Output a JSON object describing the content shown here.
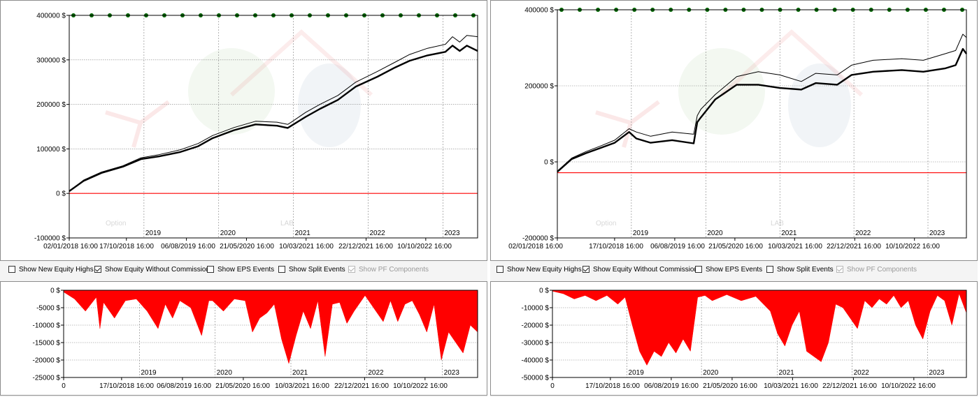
{
  "toolbar": {
    "show_new_equity_highs": {
      "label": "Show New Equity Highs",
      "checked": false,
      "enabled": true
    },
    "show_equity_without_commissions": {
      "label": "Show Equity Without Commissions",
      "checked": true,
      "enabled": true
    },
    "show_eps_events": {
      "label": "Show EPS Events",
      "checked": false,
      "enabled": true
    },
    "show_split_events": {
      "label": "Show Split Events",
      "checked": false,
      "enabled": true
    },
    "show_pf_components": {
      "label": "Show PF Components",
      "checked": true,
      "enabled": false
    }
  },
  "watermark": {
    "text_part1": "Option",
    "text_part2": "LAB"
  },
  "colors": {
    "equity": "#000000",
    "zero_line": "#ff0000",
    "drawdown": "#ff0000",
    "marker": "#006400",
    "grid": "#808080"
  },
  "chart_data": [
    {
      "id": "left-equity",
      "type": "line",
      "title": "",
      "xlabel": "",
      "ylabel": "",
      "x_tick_labels": [
        "02/01/2018 16:00",
        "17/10/2018 16:00",
        "06/08/2019 16:00",
        "21/05/2020 16:00",
        "10/03/2021 16:00",
        "22/12/2021 16:00",
        "10/10/2022 16:00"
      ],
      "year_labels": [
        "2019",
        "2020",
        "2021",
        "2022",
        "2023"
      ],
      "y_tick_labels": [
        "400000 $",
        "300000 $",
        "200000 $",
        "100000 $",
        "0 $",
        "-100000 $"
      ],
      "ylim": [
        -100000,
        400000
      ],
      "xlim": [
        0,
        5.7
      ],
      "grid": true,
      "markers": {
        "y": 400000,
        "count": 23
      },
      "series": [
        {
          "role": "equity-without-commissions",
          "x": [
            0,
            0.2,
            0.45,
            0.75,
            1.0,
            1.25,
            1.55,
            1.8,
            2.0,
            2.3,
            2.6,
            2.9,
            3.05,
            3.1,
            3.3,
            3.5,
            3.75,
            4.0,
            4.3,
            4.55,
            4.75,
            5.0,
            5.25,
            5.35,
            5.45,
            5.55,
            5.7
          ],
          "y": [
            5000,
            30000,
            48000,
            62000,
            80000,
            87000,
            98000,
            112000,
            130000,
            148000,
            162000,
            160000,
            155000,
            160000,
            182000,
            200000,
            220000,
            250000,
            274000,
            295000,
            312000,
            326000,
            335000,
            352000,
            340000,
            355000,
            352000
          ]
        },
        {
          "role": "equity",
          "x": [
            0,
            0.2,
            0.45,
            0.75,
            1.0,
            1.25,
            1.55,
            1.8,
            2.0,
            2.3,
            2.6,
            2.9,
            3.05,
            3.1,
            3.3,
            3.5,
            3.75,
            4.0,
            4.3,
            4.55,
            4.75,
            5.0,
            5.25,
            5.35,
            5.45,
            5.55,
            5.7
          ],
          "y": [
            5000,
            28000,
            46000,
            60000,
            77000,
            83000,
            93000,
            106000,
            124000,
            142000,
            155000,
            152000,
            147000,
            152000,
            172000,
            190000,
            210000,
            240000,
            262000,
            283000,
            298000,
            310000,
            318000,
            332000,
            320000,
            332000,
            320000
          ]
        }
      ]
    },
    {
      "id": "right-equity",
      "type": "line",
      "title": "",
      "xlabel": "",
      "ylabel": "",
      "x_tick_labels": [
        "02/01/2018 16:00",
        "17/10/2018 16:00",
        "06/08/2019 16:00",
        "21/05/2020 16:00",
        "10/03/2021 16:00",
        "22/12/2021 16:00",
        "10/10/2022 16:00"
      ],
      "year_labels": [
        "2019",
        "2020",
        "2021",
        "2022",
        "2023"
      ],
      "y_tick_labels": [
        "400000 $",
        "200000 $",
        "0 $",
        "-200000 $"
      ],
      "ylim": [
        -200000,
        500000
      ],
      "xlim": [
        0,
        5.7
      ],
      "grid": true,
      "markers": {
        "y": 500000,
        "count": 23
      },
      "series": [
        {
          "role": "equity-without-commissions",
          "x": [
            0,
            0.2,
            0.4,
            0.6,
            0.8,
            1.0,
            1.1,
            1.3,
            1.6,
            1.9,
            1.95,
            2.0,
            2.2,
            2.5,
            2.8,
            3.1,
            3.4,
            3.6,
            3.9,
            4.1,
            4.4,
            4.8,
            5.1,
            5.4,
            5.55,
            5.65,
            5.7
          ],
          "y": [
            5000,
            45000,
            65000,
            82000,
            100000,
            135000,
            125000,
            112000,
            125000,
            118000,
            175000,
            195000,
            240000,
            295000,
            310000,
            300000,
            280000,
            305000,
            300000,
            330000,
            345000,
            350000,
            345000,
            365000,
            375000,
            425000,
            415000
          ]
        },
        {
          "role": "equity",
          "x": [
            0,
            0.2,
            0.4,
            0.6,
            0.8,
            1.0,
            1.1,
            1.3,
            1.6,
            1.9,
            1.95,
            2.0,
            2.2,
            2.5,
            2.8,
            3.1,
            3.4,
            3.6,
            3.9,
            4.1,
            4.4,
            4.8,
            5.1,
            5.4,
            5.55,
            5.65,
            5.7
          ],
          "y": [
            3000,
            42000,
            60000,
            76000,
            92000,
            125000,
            105000,
            92000,
            100000,
            90000,
            155000,
            170000,
            225000,
            270000,
            270000,
            260000,
            255000,
            275000,
            270000,
            300000,
            310000,
            315000,
            310000,
            320000,
            330000,
            380000,
            365000
          ]
        }
      ]
    },
    {
      "id": "left-drawdown",
      "type": "area",
      "title": "",
      "xlabel": "",
      "ylabel": "",
      "x_tick_labels": [
        "0",
        "17/10/2018 16:00",
        "06/08/2019 16:00",
        "21/05/2020 16:00",
        "10/03/2021 16:00",
        "22/12/2021 16:00",
        "10/10/2022 16:00"
      ],
      "year_labels": [
        "2019",
        "2020",
        "2021",
        "2022",
        "2023"
      ],
      "y_tick_labels": [
        "0 $",
        "-5000 $",
        "-10000 $",
        "-15000 $",
        "-20000 $",
        "-25000 $"
      ],
      "ylim": [
        -25000,
        0
      ],
      "xlim": [
        0,
        5.7
      ],
      "grid": true,
      "series": [
        {
          "role": "drawdown",
          "x": [
            0,
            0.15,
            0.3,
            0.45,
            0.5,
            0.55,
            0.7,
            0.85,
            1.0,
            1.15,
            1.3,
            1.4,
            1.5,
            1.6,
            1.75,
            1.9,
            2.0,
            2.05,
            2.2,
            2.35,
            2.5,
            2.6,
            2.7,
            2.8,
            2.9,
            3.0,
            3.1,
            3.2,
            3.3,
            3.4,
            3.5,
            3.6,
            3.7,
            3.8,
            3.9,
            4.0,
            4.15,
            4.3,
            4.4,
            4.5,
            4.6,
            4.7,
            4.8,
            4.9,
            5.0,
            5.1,
            5.2,
            5.3,
            5.4,
            5.5,
            5.6,
            5.7
          ],
          "y": [
            -500,
            -2500,
            -6000,
            -2000,
            -11000,
            -3500,
            -8000,
            -3000,
            -2500,
            -6000,
            -11000,
            -4000,
            -8000,
            -3000,
            -5000,
            -13000,
            -3000,
            -3000,
            -6000,
            -2500,
            -3000,
            -12000,
            -8000,
            -6500,
            -4000,
            -14000,
            -21000,
            -13000,
            -6000,
            -11000,
            -3000,
            -19000,
            -4000,
            -3500,
            -9500,
            -6000,
            -1500,
            -6000,
            -9000,
            -3000,
            -9000,
            -4000,
            -3000,
            -7000,
            -12000,
            -4000,
            -20000,
            -12000,
            -15000,
            -18000,
            -10000,
            -12000
          ]
        }
      ]
    },
    {
      "id": "right-drawdown",
      "type": "area",
      "title": "",
      "xlabel": "",
      "ylabel": "",
      "x_tick_labels": [
        "0",
        "17/10/2018 16:00",
        "06/08/2019 16:00",
        "21/05/2020 16:00",
        "10/03/2021 16:00",
        "22/12/2021 16:00",
        "10/10/2022 16:00"
      ],
      "year_labels": [
        "2019",
        "2020",
        "2021",
        "2022",
        "2023"
      ],
      "y_tick_labels": [
        "0 $",
        "-10000 $",
        "-20000 $",
        "-30000 $",
        "-40000 $",
        "-50000 $"
      ],
      "ylim": [
        -50000,
        0
      ],
      "xlim": [
        0,
        5.7
      ],
      "grid": true,
      "series": [
        {
          "role": "drawdown",
          "x": [
            0,
            0.15,
            0.3,
            0.45,
            0.6,
            0.75,
            0.9,
            1.0,
            1.1,
            1.2,
            1.3,
            1.4,
            1.5,
            1.6,
            1.7,
            1.8,
            1.9,
            2.0,
            2.1,
            2.2,
            2.4,
            2.6,
            2.8,
            3.0,
            3.1,
            3.2,
            3.3,
            3.4,
            3.5,
            3.6,
            3.7,
            3.8,
            3.9,
            4.0,
            4.1,
            4.2,
            4.3,
            4.4,
            4.5,
            4.6,
            4.7,
            4.8,
            4.9,
            5.0,
            5.1,
            5.2,
            5.3,
            5.4,
            5.5,
            5.6,
            5.7
          ],
          "y": [
            -500,
            -2000,
            -5000,
            -3000,
            -6000,
            -3000,
            -8000,
            -4000,
            -20000,
            -35000,
            -43000,
            -35000,
            -38000,
            -30000,
            -36000,
            -28000,
            -35000,
            -4000,
            -3000,
            -6000,
            -2500,
            -6000,
            -3500,
            -12000,
            -25000,
            -32000,
            -20000,
            -12000,
            -35000,
            -38000,
            -41000,
            -30000,
            -8000,
            -10000,
            -16000,
            -22000,
            -6000,
            -10000,
            -5000,
            -8000,
            -3000,
            -10000,
            -6000,
            -20000,
            -28000,
            -12000,
            -3000,
            -6000,
            -20000,
            -2000,
            -13000
          ]
        }
      ]
    }
  ]
}
